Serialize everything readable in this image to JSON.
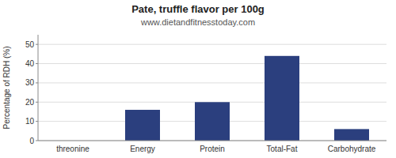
{
  "chart_data": {
    "type": "bar",
    "title": "Pate, truffle flavor per 100g",
    "subtitle": "www.dietandfitnesstoday.com",
    "categories": [
      "threonine",
      "Energy",
      "Protein",
      "Total-Fat",
      "Carbohydrate"
    ],
    "values": [
      0,
      16,
      20,
      44,
      6
    ],
    "color": "#2b3f7e",
    "ylabel": "Percentage of RDH (%)",
    "ylim": [
      0,
      55
    ],
    "yticks": [
      0,
      10,
      20,
      30,
      40,
      50
    ],
    "grid": true
  }
}
